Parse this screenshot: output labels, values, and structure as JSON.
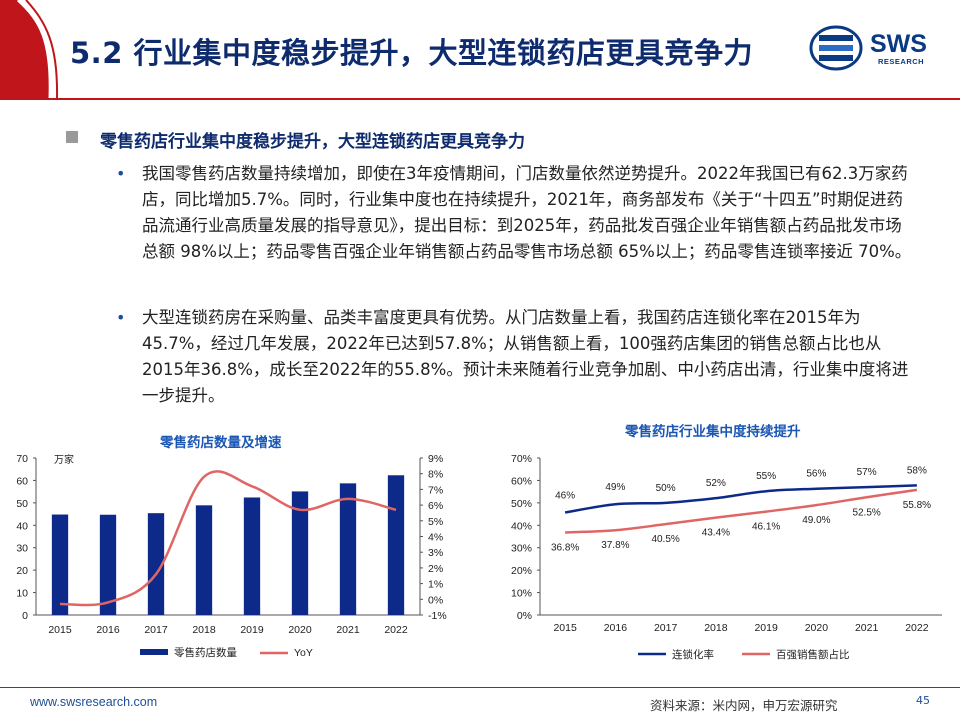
{
  "header": {
    "title": "5.2 行业集中度稳步提升，大型连锁药店更具竞争力",
    "logo_text": "SWS",
    "logo_sub": "RESEARCH"
  },
  "section": {
    "heading": "零售药店行业集中度稳步提升，大型连锁药店更具竞争力",
    "bullets": [
      "我国零售药店数量持续增加，即使在3年疫情期间，门店数量依然逆势提升。2022年我国已有62.3万家药店，同比增加5.7%。同时，行业集中度也在持续提升，2021年，商务部发布《关于“十四五”时期促进药品流通行业高质量发展的指导意见》，提出目标：到2025年，药品批发百强企业年销售额占药品批发市场总额 98%以上；药品零售百强企业年销售额占药品零售市场总额 65%以上；药品零售连锁率接近 70%。",
      "大型连锁药房在采购量、品类丰富度更具有优势。从门店数量上看，我国药店连锁化率在2015年为45.7%，经过几年发展，2022年已达到57.8%；从销售额上看，100强药店集团的销售总额占比也从2015年36.8%，成长至2022年的55.8%。预计未来随着行业竞争加剧、中小药店出清，行业集中度将进一步提升。"
    ]
  },
  "footer": {
    "website": "www.swsresearch.com",
    "source": "资料来源：米内网，申万宏源研究",
    "page": "45"
  },
  "colors": {
    "brand_red": "#c0151b",
    "navy": "#0e2b6e",
    "bar_navy": "#0d2a8a",
    "line_red": "#e06666"
  },
  "chart_data": [
    {
      "type": "bar",
      "title": "零售药店数量及增速",
      "unit_label": "万家",
      "categories": [
        "2015",
        "2016",
        "2017",
        "2018",
        "2019",
        "2020",
        "2021",
        "2022"
      ],
      "series": [
        {
          "name": "零售药店数量",
          "type": "bar",
          "axis": "left",
          "values": [
            44.8,
            44.7,
            45.4,
            48.9,
            52.4,
            55.1,
            58.7,
            62.3
          ]
        },
        {
          "name": "YoY",
          "type": "line",
          "axis": "right",
          "smooth": true,
          "values": [
            -0.3,
            -0.2,
            1.6,
            7.8,
            7.2,
            5.7,
            6.4,
            5.7
          ]
        }
      ],
      "ylim_left": [
        0,
        70
      ],
      "yticks_left": [
        "0",
        "10",
        "20",
        "30",
        "40",
        "50",
        "60",
        "70"
      ],
      "ylim_right": [
        -1,
        9
      ],
      "yticks_right": [
        "-1%",
        "0%",
        "1%",
        "2%",
        "3%",
        "4%",
        "5%",
        "6%",
        "7%",
        "8%",
        "9%"
      ],
      "legend_position": "bottom",
      "grid": false
    },
    {
      "type": "line",
      "title": "零售药店行业集中度持续提升",
      "categories": [
        "2015",
        "2016",
        "2017",
        "2018",
        "2019",
        "2020",
        "2021",
        "2022"
      ],
      "series": [
        {
          "name": "连锁化率",
          "values": [
            45.7,
            49.4,
            50.0,
            52.1,
            55.2,
            56.3,
            57.0,
            57.8
          ],
          "labels": [
            "46%",
            "49%",
            "50%",
            "52%",
            "55%",
            "56%",
            "57%",
            "58%"
          ]
        },
        {
          "name": "百强销售额占比",
          "values": [
            36.8,
            37.8,
            40.5,
            43.4,
            46.1,
            49.0,
            52.5,
            55.8
          ],
          "labels": [
            "36.8%",
            "37.8%",
            "40.5%",
            "43.4%",
            "46.1%",
            "49.0%",
            "52.5%",
            "55.8%"
          ]
        }
      ],
      "ylim": [
        0,
        70
      ],
      "yticks": [
        "0%",
        "10%",
        "20%",
        "30%",
        "40%",
        "50%",
        "60%",
        "70%"
      ],
      "legend_position": "bottom",
      "grid": false
    }
  ]
}
